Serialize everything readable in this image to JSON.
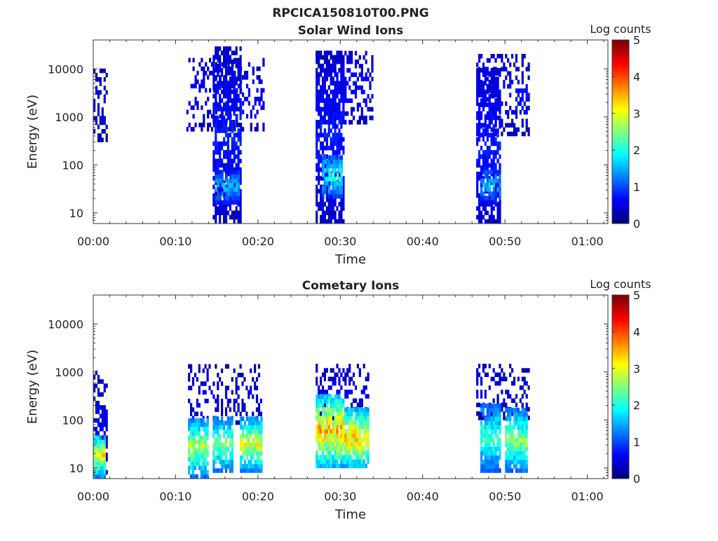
{
  "figure": {
    "title": "RPCICA150810T00.PNG"
  },
  "colormap": [
    "#00007f",
    "#0000ff",
    "#007fff",
    "#00ffff",
    "#7fff7f",
    "#ffff00",
    "#ff7f00",
    "#ff0000",
    "#7f0000"
  ],
  "chart_data": [
    {
      "type": "heatmap",
      "title": "Solar Wind Ions",
      "xlabel": "Time",
      "ylabel": "Energy (eV)",
      "x_ticks": [
        "00:00",
        "00:10",
        "00:20",
        "00:30",
        "00:40",
        "00:50",
        "01:00"
      ],
      "x_tick_minutes": [
        0,
        10,
        20,
        30,
        40,
        50,
        60
      ],
      "xlim_minutes": [
        0,
        62.5
      ],
      "y_scale": "log",
      "y_ticks": [
        "10",
        "100",
        "1000",
        "10000"
      ],
      "y_tick_values": [
        10,
        100,
        1000,
        10000
      ],
      "ylim": [
        6,
        40000
      ],
      "colorbar": {
        "title": "Log counts",
        "range": [
          0,
          5
        ],
        "ticks": [
          "0",
          "1",
          "2",
          "3",
          "4",
          "5"
        ]
      },
      "bursts": [
        {
          "t_start": 0.0,
          "t_end": 1.7,
          "e_min": 300,
          "e_max": 10000,
          "density": 0.45,
          "max_log": 0.6
        },
        {
          "t_start": 11.3,
          "t_end": 20.8,
          "e_min": 500,
          "e_max": 16000,
          "density": 0.3,
          "max_log": 0.7
        },
        {
          "t_start": 14.5,
          "t_end": 17.8,
          "e_min": 6,
          "e_max": 25000,
          "density": 0.7,
          "max_log": 0.9
        },
        {
          "t_start": 14.8,
          "t_end": 17.6,
          "e_min": 15,
          "e_max": 70,
          "density": 0.8,
          "max_log": 1.9
        },
        {
          "t_start": 27.0,
          "t_end": 33.8,
          "e_min": 700,
          "e_max": 20000,
          "density": 0.4,
          "max_log": 0.8
        },
        {
          "t_start": 27.0,
          "t_end": 30.3,
          "e_min": 6,
          "e_max": 20000,
          "density": 0.7,
          "max_log": 0.9
        },
        {
          "t_start": 27.8,
          "t_end": 30.2,
          "e_min": 20,
          "e_max": 150,
          "density": 0.85,
          "max_log": 2.4
        },
        {
          "t_start": 46.5,
          "t_end": 53.0,
          "e_min": 400,
          "e_max": 20000,
          "density": 0.4,
          "max_log": 0.8
        },
        {
          "t_start": 46.5,
          "t_end": 49.5,
          "e_min": 6,
          "e_max": 10000,
          "density": 0.7,
          "max_log": 0.9
        },
        {
          "t_start": 47.0,
          "t_end": 49.3,
          "e_min": 15,
          "e_max": 80,
          "density": 0.8,
          "max_log": 1.8
        }
      ]
    },
    {
      "type": "heatmap",
      "title": "Cometary Ions",
      "xlabel": "Time",
      "ylabel": "Energy (eV)",
      "x_ticks": [
        "00:00",
        "00:10",
        "00:20",
        "00:30",
        "00:40",
        "00:50",
        "01:00"
      ],
      "x_tick_minutes": [
        0,
        10,
        20,
        30,
        40,
        50,
        60
      ],
      "xlim_minutes": [
        0,
        62.5
      ],
      "y_scale": "log",
      "y_ticks": [
        "10",
        "100",
        "1000",
        "10000"
      ],
      "y_tick_values": [
        10,
        100,
        1000,
        10000
      ],
      "ylim": [
        6,
        40000
      ],
      "colorbar": {
        "title": "Log counts",
        "range": [
          0,
          5
        ],
        "ticks": [
          "0",
          "1",
          "2",
          "3",
          "4",
          "5"
        ]
      },
      "bursts": [
        {
          "t_start": 0.0,
          "t_end": 1.7,
          "e_min": 6,
          "e_max": 1000,
          "density": 0.5,
          "max_log": 0.7
        },
        {
          "t_start": 0.0,
          "t_end": 1.5,
          "e_min": 6,
          "e_max": 45,
          "density": 0.95,
          "max_log": 3.6
        },
        {
          "t_start": 11.5,
          "t_end": 20.5,
          "e_min": 80,
          "e_max": 1200,
          "density": 0.3,
          "max_log": 0.6
        },
        {
          "t_start": 11.5,
          "t_end": 14.0,
          "e_min": 6,
          "e_max": 100,
          "density": 0.85,
          "max_log": 3.2
        },
        {
          "t_start": 14.5,
          "t_end": 17.0,
          "e_min": 8,
          "e_max": 100,
          "density": 0.8,
          "max_log": 3.0
        },
        {
          "t_start": 17.8,
          "t_end": 20.5,
          "e_min": 8,
          "e_max": 100,
          "density": 0.85,
          "max_log": 3.4
        },
        {
          "t_start": 27.0,
          "t_end": 33.5,
          "e_min": 100,
          "e_max": 1400,
          "density": 0.3,
          "max_log": 0.6
        },
        {
          "t_start": 27.0,
          "t_end": 30.5,
          "e_min": 10,
          "e_max": 300,
          "density": 0.9,
          "max_log": 4.0
        },
        {
          "t_start": 30.5,
          "t_end": 33.5,
          "e_min": 10,
          "e_max": 150,
          "density": 0.9,
          "max_log": 4.0
        },
        {
          "t_start": 46.5,
          "t_end": 53.0,
          "e_min": 100,
          "e_max": 1400,
          "density": 0.3,
          "max_log": 0.6
        },
        {
          "t_start": 47.0,
          "t_end": 49.3,
          "e_min": 8,
          "e_max": 200,
          "density": 0.85,
          "max_log": 2.6
        },
        {
          "t_start": 50.0,
          "t_end": 52.7,
          "e_min": 8,
          "e_max": 150,
          "density": 0.85,
          "max_log": 3.0
        }
      ]
    }
  ]
}
